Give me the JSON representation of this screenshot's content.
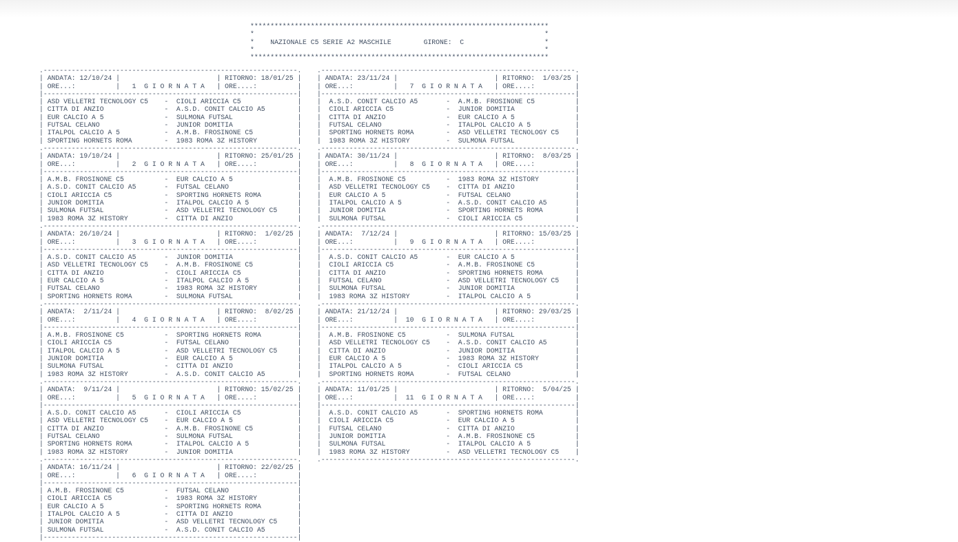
{
  "colors": {
    "text": "#3f4d61",
    "page_bg": "#ffffff",
    "top_fade": "#f2f2f2"
  },
  "header": {
    "title": "NAZIONALE C5 SERIE A2 MASCHILE",
    "girone_label": "GIRONE:",
    "girone": "C"
  },
  "labels": {
    "andata": "ANDATA:",
    "ritorno": "RITORNO:",
    "ore_andata": "ORE...:",
    "ore_ritorno": "ORE....:",
    "giornata_word": "G I O R N A T A"
  },
  "giornate": [
    {
      "numero": "1",
      "andata": "12/10/24",
      "ritorno": "18/01/25",
      "matches": [
        [
          "ASD VELLETRI TECNOLOGY C5",
          "CIOLI ARICCIA C5"
        ],
        [
          "CITTA DI ANZIO",
          "A.S.D. CONIT CALCIO A5"
        ],
        [
          "EUR CALCIO A 5",
          "SULMONA FUTSAL"
        ],
        [
          "FUTSAL CELANO",
          "JUNIOR DOMITIA"
        ],
        [
          "ITALPOL CALCIO A 5",
          "A.M.B. FROSINONE C5"
        ],
        [
          "SPORTING HORNETS ROMA",
          "1983 ROMA 3Z HISTORY"
        ]
      ]
    },
    {
      "numero": "2",
      "andata": "19/10/24",
      "ritorno": "25/01/25",
      "matches": [
        [
          "A.M.B. FROSINONE C5",
          "EUR CALCIO A 5"
        ],
        [
          "A.S.D. CONIT CALCIO A5",
          "FUTSAL CELANO"
        ],
        [
          "CIOLI ARICCIA C5",
          "SPORTING HORNETS ROMA"
        ],
        [
          "JUNIOR DOMITIA",
          "ITALPOL CALCIO A 5"
        ],
        [
          "SULMONA FUTSAL",
          "ASD VELLETRI TECNOLOGY C5"
        ],
        [
          "1983 ROMA 3Z HISTORY",
          "CITTA DI ANZIO"
        ]
      ]
    },
    {
      "numero": "3",
      "andata": "26/10/24",
      "ritorno": "1/02/25",
      "matches": [
        [
          "A.S.D. CONIT CALCIO A5",
          "JUNIOR DOMITIA"
        ],
        [
          "ASD VELLETRI TECNOLOGY C5",
          "A.M.B. FROSINONE C5"
        ],
        [
          "CITTA DI ANZIO",
          "CIOLI ARICCIA C5"
        ],
        [
          "EUR CALCIO A 5",
          "ITALPOL CALCIO A 5"
        ],
        [
          "FUTSAL CELANO",
          "1983 ROMA 3Z HISTORY"
        ],
        [
          "SPORTING HORNETS ROMA",
          "SULMONA FUTSAL"
        ]
      ]
    },
    {
      "numero": "4",
      "andata": "2/11/24",
      "ritorno": "8/02/25",
      "matches": [
        [
          "A.M.B. FROSINONE C5",
          "SPORTING HORNETS ROMA"
        ],
        [
          "CIOLI ARICCIA C5",
          "FUTSAL CELANO"
        ],
        [
          "ITALPOL CALCIO A 5",
          "ASD VELLETRI TECNOLOGY C5"
        ],
        [
          "JUNIOR DOMITIA",
          "EUR CALCIO A 5"
        ],
        [
          "SULMONA FUTSAL",
          "CITTA DI ANZIO"
        ],
        [
          "1983 ROMA 3Z HISTORY",
          "A.S.D. CONIT CALCIO A5"
        ]
      ]
    },
    {
      "numero": "5",
      "andata": "9/11/24",
      "ritorno": "15/02/25",
      "matches": [
        [
          "A.S.D. CONIT CALCIO A5",
          "CIOLI ARICCIA C5"
        ],
        [
          "ASD VELLETRI TECNOLOGY C5",
          "EUR CALCIO A 5"
        ],
        [
          "CITTA DI ANZIO",
          "A.M.B. FROSINONE C5"
        ],
        [
          "FUTSAL CELANO",
          "SULMONA FUTSAL"
        ],
        [
          "SPORTING HORNETS ROMA",
          "ITALPOL CALCIO A 5"
        ],
        [
          "1983 ROMA 3Z HISTORY",
          "JUNIOR DOMITIA"
        ]
      ]
    },
    {
      "numero": "6",
      "andata": "16/11/24",
      "ritorno": "22/02/25",
      "matches": [
        [
          "A.M.B. FROSINONE C5",
          "FUTSAL CELANO"
        ],
        [
          "CIOLI ARICCIA C5",
          "1983 ROMA 3Z HISTORY"
        ],
        [
          "EUR CALCIO A 5",
          "SPORTING HORNETS ROMA"
        ],
        [
          "ITALPOL CALCIO A 5",
          "CITTA DI ANZIO"
        ],
        [
          "JUNIOR DOMITIA",
          "ASD VELLETRI TECNOLOGY C5"
        ],
        [
          "SULMONA FUTSAL",
          "A.S.D. CONIT CALCIO A5"
        ]
      ]
    },
    {
      "numero": "7",
      "andata": "23/11/24",
      "ritorno": "1/03/25",
      "matches": [
        [
          "A.S.D. CONIT CALCIO A5",
          "A.M.B. FROSINONE C5"
        ],
        [
          "CIOLI ARICCIA C5",
          "JUNIOR DOMITIA"
        ],
        [
          "CITTA DI ANZIO",
          "EUR CALCIO A 5"
        ],
        [
          "FUTSAL CELANO",
          "ITALPOL CALCIO A 5"
        ],
        [
          "SPORTING HORNETS ROMA",
          "ASD VELLETRI TECNOLOGY C5"
        ],
        [
          "1983 ROMA 3Z HISTORY",
          "SULMONA FUTSAL"
        ]
      ]
    },
    {
      "numero": "8",
      "andata": "30/11/24",
      "ritorno": "8/03/25",
      "matches": [
        [
          "A.M.B. FROSINONE C5",
          "1983 ROMA 3Z HISTORY"
        ],
        [
          "ASD VELLETRI TECNOLOGY C5",
          "CITTA DI ANZIO"
        ],
        [
          "EUR CALCIO A 5",
          "FUTSAL CELANO"
        ],
        [
          "ITALPOL CALCIO A 5",
          "A.S.D. CONIT CALCIO A5"
        ],
        [
          "JUNIOR DOMITIA",
          "SPORTING HORNETS ROMA"
        ],
        [
          "SULMONA FUTSAL",
          "CIOLI ARICCIA C5"
        ]
      ]
    },
    {
      "numero": "9",
      "andata": "7/12/24",
      "ritorno": "15/03/25",
      "matches": [
        [
          "A.S.D. CONIT CALCIO A5",
          "EUR CALCIO A 5"
        ],
        [
          "CIOLI ARICCIA C5",
          "A.M.B. FROSINONE C5"
        ],
        [
          "CITTA DI ANZIO",
          "SPORTING HORNETS ROMA"
        ],
        [
          "FUTSAL CELANO",
          "ASD VELLETRI TECNOLOGY C5"
        ],
        [
          "SULMONA FUTSAL",
          "JUNIOR DOMITIA"
        ],
        [
          "1983 ROMA 3Z HISTORY",
          "ITALPOL CALCIO A 5"
        ]
      ]
    },
    {
      "numero": "10",
      "andata": "21/12/24",
      "ritorno": "29/03/25",
      "matches": [
        [
          "A.M.B. FROSINONE C5",
          "SULMONA FUTSAL"
        ],
        [
          "ASD VELLETRI TECNOLOGY C5",
          "A.S.D. CONIT CALCIO A5"
        ],
        [
          "CITTA DI ANZIO",
          "JUNIOR DOMITIA"
        ],
        [
          "EUR CALCIO A 5",
          "1983 ROMA 3Z HISTORY"
        ],
        [
          "ITALPOL CALCIO A 5",
          "CIOLI ARICCIA C5"
        ],
        [
          "SPORTING HORNETS ROMA",
          "FUTSAL CELANO"
        ]
      ]
    },
    {
      "numero": "11",
      "andata": "11/01/25",
      "ritorno": "5/04/25",
      "matches": [
        [
          "A.S.D. CONIT CALCIO A5",
          "SPORTING HORNETS ROMA"
        ],
        [
          "CIOLI ARICCIA C5",
          "EUR CALCIO A 5"
        ],
        [
          "FUTSAL CELANO",
          "CITTA DI ANZIO"
        ],
        [
          "JUNIOR DOMITIA",
          "A.M.B. FROSINONE C5"
        ],
        [
          "SULMONA FUTSAL",
          "ITALPOL CALCIO A 5"
        ],
        [
          "1983 ROMA 3Z HISTORY",
          "ASD VELLETRI TECNOLOGY C5"
        ]
      ]
    }
  ]
}
